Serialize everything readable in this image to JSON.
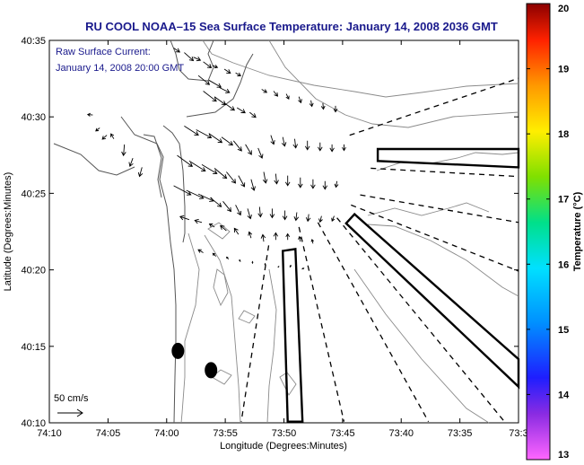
{
  "chart_data": {
    "type": "map-vector",
    "title": "RU COOL  NOAA–15  Sea Surface Temperature:  January 14, 2008 2036 GMT",
    "annotation": [
      "Raw Surface Current:",
      "January 14, 2008 20:00 GMT"
    ],
    "scale_label": "50 cm/s",
    "xlabel": "Longitude (Degrees:Minutes)",
    "ylabel": "Latitude (Degrees:Minutes)",
    "xlim": [
      -74.1667,
      -73.5
    ],
    "ylim": [
      40.1667,
      40.5833
    ],
    "x_ticks": [
      {
        "value": -74.1667,
        "label": "74:10"
      },
      {
        "value": -74.0833,
        "label": "74:05"
      },
      {
        "value": -74.0,
        "label": "74:00"
      },
      {
        "value": -73.9167,
        "label": "73:55"
      },
      {
        "value": -73.8333,
        "label": "73:50"
      },
      {
        "value": -73.75,
        "label": "73:45"
      },
      {
        "value": -73.6667,
        "label": "73:40"
      },
      {
        "value": -73.5833,
        "label": "73:35"
      },
      {
        "value": -73.5,
        "label": "73:3"
      }
    ],
    "y_ticks": [
      {
        "value": 40.1667,
        "label": "40:10"
      },
      {
        "value": 40.25,
        "label": "40:15"
      },
      {
        "value": 40.3333,
        "label": "40:20"
      },
      {
        "value": 40.4167,
        "label": "40:25"
      },
      {
        "value": 40.5,
        "label": "40:30"
      },
      {
        "value": 40.5833,
        "label": "40:35"
      }
    ],
    "colorbar": {
      "label": "Temperature (°C)",
      "min": 13,
      "max": 20,
      "ticks": [
        "13",
        "14",
        "15",
        "16",
        "17",
        "18",
        "19",
        "20"
      ]
    },
    "vector_scale_cm_s": 50,
    "vectors": [
      {
        "lon": -74.105,
        "lat": 40.502,
        "u": -10,
        "v": 1
      },
      {
        "lon": -74.095,
        "lat": 40.488,
        "u": -8,
        "v": -6
      },
      {
        "lon": -74.085,
        "lat": 40.48,
        "u": -9,
        "v": -8
      },
      {
        "lon": -74.075,
        "lat": 40.476,
        "u": -6,
        "v": 10
      },
      {
        "lon": -74.06,
        "lat": 40.47,
        "u": -2,
        "v": -22
      },
      {
        "lon": -74.048,
        "lat": 40.455,
        "u": -6,
        "v": -16
      },
      {
        "lon": -74.035,
        "lat": 40.445,
        "u": -5,
        "v": -18
      },
      {
        "lon": -73.99,
        "lat": 40.575,
        "u": 12,
        "v": -8
      },
      {
        "lon": -73.975,
        "lat": 40.57,
        "u": 18,
        "v": -16
      },
      {
        "lon": -73.962,
        "lat": 40.565,
        "u": 14,
        "v": -6
      },
      {
        "lon": -73.948,
        "lat": 40.56,
        "u": 16,
        "v": -12
      },
      {
        "lon": -73.935,
        "lat": 40.556,
        "u": 10,
        "v": -4
      },
      {
        "lon": -73.918,
        "lat": 40.552,
        "u": 12,
        "v": -8
      },
      {
        "lon": -73.902,
        "lat": 40.548,
        "u": 10,
        "v": -6
      },
      {
        "lon": -73.955,
        "lat": 40.545,
        "u": 22,
        "v": -18
      },
      {
        "lon": -73.94,
        "lat": 40.54,
        "u": 24,
        "v": -14
      },
      {
        "lon": -73.925,
        "lat": 40.532,
        "u": 20,
        "v": -10
      },
      {
        "lon": -73.948,
        "lat": 40.528,
        "u": 26,
        "v": -20
      },
      {
        "lon": -73.932,
        "lat": 40.522,
        "u": 22,
        "v": -16
      },
      {
        "lon": -73.918,
        "lat": 40.515,
        "u": 20,
        "v": -14
      },
      {
        "lon": -73.9,
        "lat": 40.51,
        "u": 16,
        "v": -10
      },
      {
        "lon": -73.882,
        "lat": 40.505,
        "u": 12,
        "v": -10
      },
      {
        "lon": -73.865,
        "lat": 40.53,
        "u": 10,
        "v": -6
      },
      {
        "lon": -73.848,
        "lat": 40.528,
        "u": 8,
        "v": -10
      },
      {
        "lon": -73.83,
        "lat": 40.525,
        "u": 5,
        "v": -10
      },
      {
        "lon": -73.812,
        "lat": 40.522,
        "u": 4,
        "v": -12
      },
      {
        "lon": -73.795,
        "lat": 40.518,
        "u": 2,
        "v": -12
      },
      {
        "lon": -73.778,
        "lat": 40.515,
        "u": 1,
        "v": -12
      },
      {
        "lon": -73.76,
        "lat": 40.512,
        "u": 0,
        "v": -12
      },
      {
        "lon": -73.975,
        "lat": 40.49,
        "u": 28,
        "v": -18
      },
      {
        "lon": -73.958,
        "lat": 40.486,
        "u": 30,
        "v": -16
      },
      {
        "lon": -73.94,
        "lat": 40.482,
        "u": 26,
        "v": -18
      },
      {
        "lon": -73.922,
        "lat": 40.478,
        "u": 22,
        "v": -16
      },
      {
        "lon": -73.905,
        "lat": 40.474,
        "u": 16,
        "v": -20
      },
      {
        "lon": -73.888,
        "lat": 40.47,
        "u": 12,
        "v": -20
      },
      {
        "lon": -73.87,
        "lat": 40.466,
        "u": 8,
        "v": -20
      },
      {
        "lon": -73.852,
        "lat": 40.48,
        "u": 6,
        "v": -18
      },
      {
        "lon": -73.835,
        "lat": 40.478,
        "u": 4,
        "v": -18
      },
      {
        "lon": -73.818,
        "lat": 40.476,
        "u": 2,
        "v": -18
      },
      {
        "lon": -73.8,
        "lat": 40.474,
        "u": 0,
        "v": -18
      },
      {
        "lon": -73.782,
        "lat": 40.472,
        "u": 0,
        "v": -16
      },
      {
        "lon": -73.765,
        "lat": 40.47,
        "u": 0,
        "v": -14
      },
      {
        "lon": -73.748,
        "lat": 40.47,
        "u": 0,
        "v": -12
      },
      {
        "lon": -73.985,
        "lat": 40.458,
        "u": 30,
        "v": -22
      },
      {
        "lon": -73.968,
        "lat": 40.452,
        "u": 32,
        "v": -20
      },
      {
        "lon": -73.95,
        "lat": 40.448,
        "u": 30,
        "v": -18
      },
      {
        "lon": -73.932,
        "lat": 40.444,
        "u": 24,
        "v": -20
      },
      {
        "lon": -73.915,
        "lat": 40.44,
        "u": 18,
        "v": -22
      },
      {
        "lon": -73.898,
        "lat": 40.436,
        "u": 12,
        "v": -22
      },
      {
        "lon": -73.88,
        "lat": 40.432,
        "u": 6,
        "v": -22
      },
      {
        "lon": -73.862,
        "lat": 40.44,
        "u": 4,
        "v": -22
      },
      {
        "lon": -73.845,
        "lat": 40.438,
        "u": 2,
        "v": -20
      },
      {
        "lon": -73.828,
        "lat": 40.436,
        "u": 0,
        "v": -20
      },
      {
        "lon": -73.81,
        "lat": 40.434,
        "u": 0,
        "v": -20
      },
      {
        "lon": -73.792,
        "lat": 40.432,
        "u": 0,
        "v": -18
      },
      {
        "lon": -73.775,
        "lat": 40.43,
        "u": 0,
        "v": -16
      },
      {
        "lon": -73.758,
        "lat": 40.43,
        "u": -2,
        "v": -12
      },
      {
        "lon": -73.99,
        "lat": 40.425,
        "u": 34,
        "v": -18
      },
      {
        "lon": -73.972,
        "lat": 40.42,
        "u": 34,
        "v": -16
      },
      {
        "lon": -73.955,
        "lat": 40.416,
        "u": 30,
        "v": -14
      },
      {
        "lon": -73.938,
        "lat": 40.412,
        "u": 22,
        "v": -18
      },
      {
        "lon": -73.92,
        "lat": 40.408,
        "u": 16,
        "v": -20
      },
      {
        "lon": -73.902,
        "lat": 40.404,
        "u": 10,
        "v": -20
      },
      {
        "lon": -73.885,
        "lat": 40.4,
        "u": 6,
        "v": -20
      },
      {
        "lon": -73.868,
        "lat": 40.402,
        "u": 2,
        "v": -20
      },
      {
        "lon": -73.85,
        "lat": 40.4,
        "u": 0,
        "v": -18
      },
      {
        "lon": -73.832,
        "lat": 40.398,
        "u": 0,
        "v": -18
      },
      {
        "lon": -73.815,
        "lat": 40.396,
        "u": -2,
        "v": -16
      },
      {
        "lon": -73.798,
        "lat": 40.394,
        "u": -2,
        "v": -14
      },
      {
        "lon": -73.78,
        "lat": 40.392,
        "u": -3,
        "v": -12
      },
      {
        "lon": -73.762,
        "lat": 40.392,
        "u": -4,
        "v": -10
      },
      {
        "lon": -73.968,
        "lat": 40.388,
        "u": -18,
        "v": 6
      },
      {
        "lon": -73.95,
        "lat": 40.385,
        "u": -14,
        "v": 4
      },
      {
        "lon": -73.932,
        "lat": 40.38,
        "u": -10,
        "v": 6
      },
      {
        "lon": -73.915,
        "lat": 40.376,
        "u": -12,
        "v": 10
      },
      {
        "lon": -73.898,
        "lat": 40.372,
        "u": -8,
        "v": 12
      },
      {
        "lon": -73.88,
        "lat": 40.368,
        "u": -4,
        "v": 12
      },
      {
        "lon": -73.862,
        "lat": 40.364,
        "u": -2,
        "v": 14
      },
      {
        "lon": -73.845,
        "lat": 40.366,
        "u": 0,
        "v": 14
      },
      {
        "lon": -73.828,
        "lat": 40.366,
        "u": 0,
        "v": 12
      },
      {
        "lon": -73.81,
        "lat": 40.364,
        "u": -2,
        "v": 10
      },
      {
        "lon": -73.792,
        "lat": 40.362,
        "u": -2,
        "v": 8
      },
      {
        "lon": -73.948,
        "lat": 40.352,
        "u": -10,
        "v": 6
      },
      {
        "lon": -73.93,
        "lat": 40.348,
        "u": -6,
        "v": 6
      },
      {
        "lon": -73.912,
        "lat": 40.345,
        "u": -4,
        "v": 4
      },
      {
        "lon": -73.895,
        "lat": 40.342,
        "u": -2,
        "v": 4
      },
      {
        "lon": -73.878,
        "lat": 40.34,
        "u": 0,
        "v": 4
      },
      {
        "lon": -73.86,
        "lat": 40.338,
        "u": 0,
        "v": 4
      },
      {
        "lon": -73.842,
        "lat": 40.336,
        "u": 2,
        "v": 2
      },
      {
        "lon": -73.825,
        "lat": 40.336,
        "u": 2,
        "v": 4
      },
      {
        "lon": -73.808,
        "lat": 40.334,
        "u": 4,
        "v": 2
      }
    ],
    "lease_areas": [
      [
        [
          -73.7,
          40.465
        ],
        [
          -73.5,
          40.465
        ],
        [
          -73.5,
          40.445
        ],
        [
          -73.7,
          40.452
        ]
      ],
      [
        [
          -73.745,
          40.384
        ],
        [
          -73.733,
          40.394
        ],
        [
          -73.5,
          40.236
        ],
        [
          -73.5,
          40.206
        ]
      ],
      [
        [
          -73.835,
          40.354
        ],
        [
          -73.817,
          40.356
        ],
        [
          -73.807,
          40.168
        ],
        [
          -73.828,
          40.168
        ]
      ]
    ],
    "dashed_lines": [
      [
        [
          -73.74,
          40.48
        ],
        [
          -73.5,
          40.542
        ]
      ],
      [
        [
          -73.71,
          40.444
        ],
        [
          -73.5,
          40.435
        ]
      ],
      [
        [
          -73.725,
          40.415
        ],
        [
          -73.5,
          40.385
        ]
      ],
      [
        [
          -73.738,
          40.404
        ],
        [
          -73.5,
          40.332
        ]
      ],
      [
        [
          -73.758,
          40.39
        ],
        [
          -73.52,
          40.168
        ]
      ],
      [
        [
          -73.785,
          40.385
        ],
        [
          -73.628,
          40.168
        ]
      ],
      [
        [
          -73.812,
          40.38
        ],
        [
          -73.748,
          40.168
        ]
      ],
      [
        [
          -73.855,
          40.36
        ],
        [
          -73.894,
          40.168
        ]
      ]
    ],
    "buoys": [
      {
        "lon": -73.984,
        "lat": 40.245
      },
      {
        "lon": -73.937,
        "lat": 40.224
      }
    ]
  }
}
